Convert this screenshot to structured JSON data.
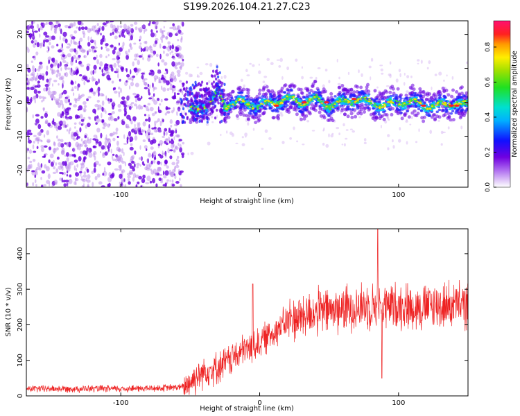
{
  "figure_title": "S199.2026.104.21.27.C23",
  "colors": {
    "snr_line": "#ee2222",
    "scatter_sparse": "#b37fe8",
    "scatter_dense": "#6a00e0",
    "axis": "#000000"
  },
  "chart_data": [
    {
      "type": "heatmap",
      "title": "",
      "xlabel": "Height of straight line (km)",
      "ylabel": "Frequency (Hz)",
      "xlim": [
        -168,
        150
      ],
      "ylim": [
        -25,
        24
      ],
      "xticks": [
        -100,
        0,
        100
      ],
      "yticks": [
        -20,
        -10,
        0,
        10,
        20
      ],
      "colorbar": {
        "label": "Normalized spectral amplitude",
        "range": [
          0,
          0.95
        ],
        "ticks": [
          0.0,
          0.2,
          0.4,
          0.6,
          0.8
        ],
        "colormap": "rainbow (magenta-purple-blue-cyan-green-yellow-orange-red-pink)"
      },
      "series": [
        {
          "name": "broadband noise region",
          "x_range": [
            -168,
            -55
          ],
          "frequency_range": [
            -25,
            24
          ],
          "amplitude_range": [
            0.05,
            0.2
          ]
        },
        {
          "name": "narrow signal band",
          "x_range": [
            -55,
            150
          ],
          "center_frequency": [
            [
              -55,
              -3
            ],
            [
              -45,
              -2
            ],
            [
              -35,
              0
            ],
            [
              -30,
              3
            ],
            [
              -25,
              -1
            ],
            [
              -15,
              0
            ],
            [
              0,
              -1
            ],
            [
              10,
              0
            ],
            [
              20,
              1
            ],
            [
              30,
              0
            ],
            [
              40,
              1
            ],
            [
              50,
              -1
            ],
            [
              60,
              0
            ],
            [
              70,
              1
            ],
            [
              80,
              0
            ],
            [
              90,
              -1
            ],
            [
              100,
              0
            ],
            [
              110,
              0
            ],
            [
              120,
              -1
            ],
            [
              130,
              -1
            ],
            [
              140,
              0
            ],
            [
              150,
              -1
            ]
          ],
          "peak_amplitude": 0.95
        }
      ]
    },
    {
      "type": "line",
      "title": "",
      "xlabel": "Height of straight line (km)",
      "ylabel": "SNR (10 * v/v)",
      "xlim": [
        -168,
        150
      ],
      "ylim": [
        0,
        470
      ],
      "xticks": [
        -100,
        0,
        100
      ],
      "yticks": [
        0,
        100,
        200,
        300,
        400
      ],
      "series": [
        {
          "name": "SNR",
          "baseline": [
            [
              -168,
              20
            ],
            [
              -140,
              20
            ],
            [
              -100,
              20
            ],
            [
              -70,
              22
            ],
            [
              -55,
              25
            ],
            [
              -50,
              40
            ],
            [
              -40,
              70
            ],
            [
              -30,
              80
            ],
            [
              -20,
              105
            ],
            [
              -10,
              130
            ],
            [
              0,
              150
            ],
            [
              10,
              180
            ],
            [
              20,
              210
            ],
            [
              30,
              225
            ],
            [
              40,
              235
            ],
            [
              50,
              240
            ],
            [
              60,
              245
            ],
            [
              70,
              250
            ],
            [
              80,
              255
            ],
            [
              90,
              250
            ],
            [
              100,
              255
            ],
            [
              110,
              250
            ],
            [
              120,
              250
            ],
            [
              130,
              255
            ],
            [
              140,
              255
            ],
            [
              150,
              255
            ]
          ],
          "peaks": [
            [
              -5,
              315
            ],
            [
              85,
              470
            ],
            [
              88,
              50
            ]
          ]
        }
      ]
    }
  ]
}
